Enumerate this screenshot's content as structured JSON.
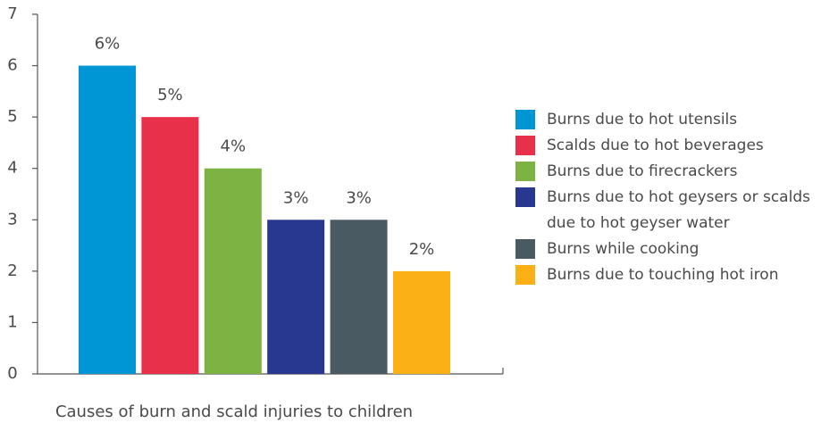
{
  "chart_data": {
    "type": "bar",
    "x_label": "Causes of burn and scald injuries to children",
    "categories": [
      "Burns due to hot utensils",
      "Scalds due to hot beverages",
      "Burns due to firecrackers",
      "Burns due to hot geysers or scalds due to hot geyser water",
      "Burns while cooking",
      "Burns due to touching hot iron"
    ],
    "values": [
      6,
      5,
      4,
      3,
      3,
      2
    ],
    "value_labels": [
      "6%",
      "5%",
      "4%",
      "3%",
      "3%",
      "2%"
    ],
    "colors": [
      "#0096d6",
      "#e8304a",
      "#7cb342",
      "#283891",
      "#4a5a63",
      "#fbb116"
    ],
    "ylim": [
      0,
      7
    ],
    "yticks": [
      0,
      1,
      2,
      3,
      4,
      5,
      6,
      7
    ],
    "legend": "right"
  }
}
